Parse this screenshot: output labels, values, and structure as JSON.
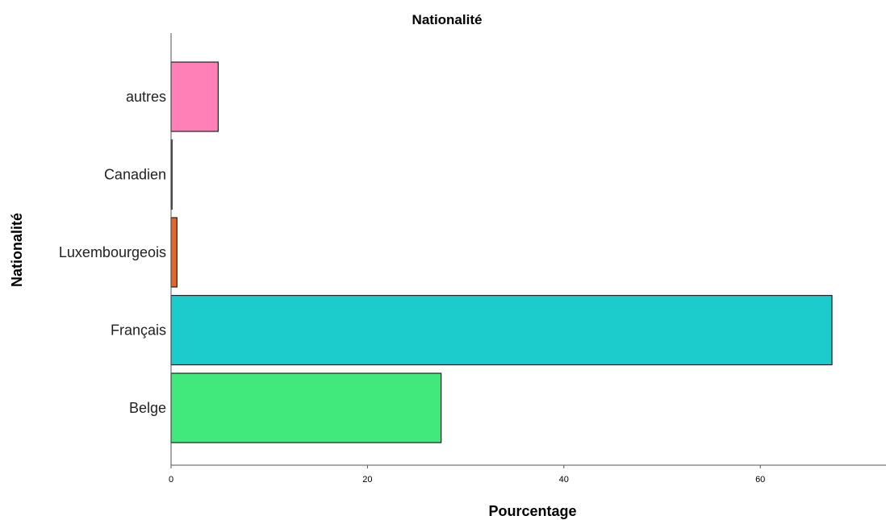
{
  "chart_data": {
    "type": "bar",
    "orientation": "horizontal",
    "title": "Nationalité",
    "xlabel": "Pourcentage",
    "ylabel": "Nationalité",
    "categories": [
      "autres",
      "Canadien",
      "Luxembourgeois",
      "Français",
      "Belge"
    ],
    "values": [
      4.8,
      0.1,
      0.6,
      67.3,
      27.5
    ],
    "colors": [
      "#ff80b6",
      "#c8a0ff",
      "#e8642a",
      "#1ccbcb",
      "#41e87c"
    ],
    "xlim": [
      0,
      72
    ],
    "xticks": [
      0,
      20,
      40,
      60
    ],
    "grid": false
  }
}
